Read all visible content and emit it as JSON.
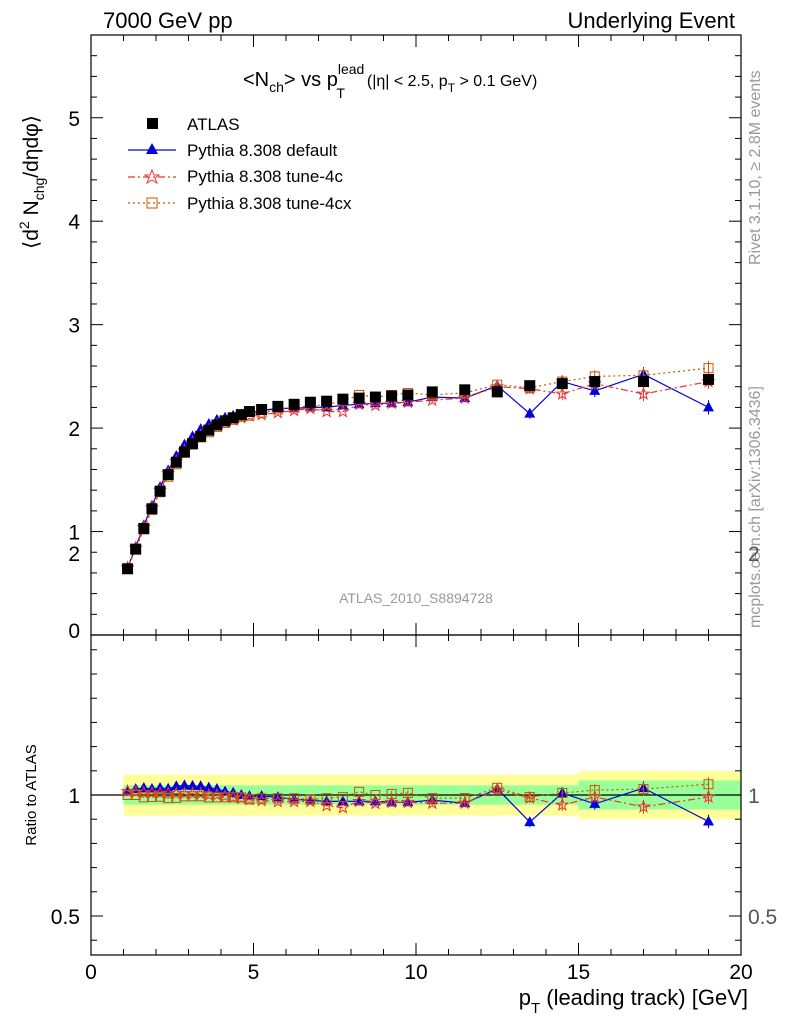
{
  "header": {
    "left": "7000 GeV pp",
    "right": "Underlying Event"
  },
  "side_text": {
    "rivet": "Rivet 3.1.10, ≥ 2.8M events",
    "mcplots": "mcplots.cern.ch [arXiv:1306.3436]"
  },
  "watermark": "ATLAS_2010_S8894728",
  "colors": {
    "atlas": "#000000",
    "default": "#0000dd",
    "tune4c": "#ee3333",
    "tune4cx": "#cc5500",
    "band_inner": "#99ff99",
    "band_outer": "#ffff99"
  },
  "chart_data": [
    {
      "type": "line",
      "title": {
        "prefix": "<N",
        "sub1": "ch",
        "mid": "> vs p",
        "sup": "lead",
        "sub2": "T",
        "rest_a": "(|η| < 2.5, p",
        "rest_sub": "T",
        "rest_b": " > 0.1 GeV)"
      },
      "ylabel": "⟨d² Nₗₕ₉/dηdφ⟩",
      "ylabel_parts": {
        "a": "⟨d",
        "sup": "2",
        "b": " N",
        "sub": "chg",
        "c": "/dηdφ⟩"
      },
      "xlim": [
        0,
        20
      ],
      "ylim": [
        0,
        5.8
      ],
      "yticks": [
        "1",
        "2",
        "3",
        "4",
        "5"
      ],
      "yticks_partial": [
        "0"
      ],
      "grid": false,
      "legend": "top-left",
      "x": [
        1.125,
        1.375,
        1.625,
        1.875,
        2.125,
        2.375,
        2.625,
        2.875,
        3.125,
        3.375,
        3.625,
        3.875,
        4.125,
        4.375,
        4.625,
        4.875,
        5.25,
        5.75,
        6.25,
        6.75,
        7.25,
        7.75,
        8.25,
        8.75,
        9.25,
        9.75,
        10.5,
        11.5,
        12.5,
        13.5,
        14.5,
        15.5,
        17.0,
        19.0
      ],
      "series": [
        {
          "name": "ATLAS",
          "marker": "square",
          "values": [
            0.64,
            0.83,
            1.03,
            1.22,
            1.39,
            1.55,
            1.67,
            1.77,
            1.85,
            1.92,
            1.98,
            2.03,
            2.07,
            2.1,
            2.13,
            2.16,
            2.18,
            2.21,
            2.23,
            2.25,
            2.26,
            2.28,
            2.29,
            2.3,
            2.31,
            2.32,
            2.35,
            2.37,
            2.35,
            2.41,
            2.43,
            2.45,
            2.45,
            2.47
          ]
        },
        {
          "name": "Pythia 8.308 default",
          "marker": "triangle",
          "values": [
            0.65,
            0.85,
            1.06,
            1.25,
            1.43,
            1.59,
            1.73,
            1.84,
            1.92,
            1.99,
            2.04,
            2.08,
            2.1,
            2.12,
            2.13,
            2.15,
            2.17,
            2.19,
            2.19,
            2.2,
            2.2,
            2.22,
            2.23,
            2.24,
            2.24,
            2.25,
            2.3,
            2.29,
            2.41,
            2.14,
            2.45,
            2.36,
            2.52,
            2.2
          ],
          "errors": [
            0.01,
            0.01,
            0.01,
            0.01,
            0.01,
            0.01,
            0.01,
            0.01,
            0.01,
            0.01,
            0.01,
            0.01,
            0.01,
            0.01,
            0.01,
            0.01,
            0.02,
            0.02,
            0.02,
            0.02,
            0.02,
            0.02,
            0.02,
            0.02,
            0.03,
            0.03,
            0.03,
            0.03,
            0.04,
            0.05,
            0.06,
            0.06,
            0.07,
            0.07
          ]
        },
        {
          "name": "Pythia 8.308 tune-4c",
          "marker": "star",
          "values": [
            0.65,
            0.84,
            1.04,
            1.23,
            1.4,
            1.56,
            1.68,
            1.78,
            1.86,
            1.93,
            1.98,
            2.03,
            2.06,
            2.08,
            2.1,
            2.12,
            2.13,
            2.15,
            2.17,
            2.19,
            2.16,
            2.16,
            2.23,
            2.22,
            2.24,
            2.25,
            2.27,
            2.29,
            2.4,
            2.38,
            2.33,
            2.43,
            2.33,
            2.45
          ],
          "errors": [
            0.01,
            0.01,
            0.01,
            0.01,
            0.01,
            0.01,
            0.01,
            0.01,
            0.01,
            0.01,
            0.01,
            0.01,
            0.01,
            0.01,
            0.01,
            0.01,
            0.02,
            0.02,
            0.02,
            0.02,
            0.02,
            0.02,
            0.02,
            0.02,
            0.03,
            0.03,
            0.03,
            0.03,
            0.04,
            0.05,
            0.06,
            0.06,
            0.07,
            0.07
          ]
        },
        {
          "name": "Pythia 8.308 tune-4cx",
          "marker": "open-square",
          "values": [
            0.64,
            0.83,
            1.02,
            1.21,
            1.38,
            1.53,
            1.65,
            1.76,
            1.84,
            1.91,
            1.96,
            2.01,
            2.05,
            2.08,
            2.11,
            2.12,
            2.15,
            2.18,
            2.2,
            2.21,
            2.23,
            2.26,
            2.32,
            2.3,
            2.32,
            2.34,
            2.32,
            2.34,
            2.42,
            2.39,
            2.45,
            2.5,
            2.51,
            2.58
          ],
          "errors": [
            0.01,
            0.01,
            0.01,
            0.01,
            0.01,
            0.01,
            0.01,
            0.01,
            0.01,
            0.01,
            0.01,
            0.01,
            0.01,
            0.01,
            0.01,
            0.01,
            0.02,
            0.02,
            0.02,
            0.02,
            0.02,
            0.02,
            0.02,
            0.02,
            0.03,
            0.03,
            0.03,
            0.03,
            0.04,
            0.05,
            0.06,
            0.06,
            0.07,
            0.07
          ]
        }
      ]
    },
    {
      "type": "line",
      "ylabel": "Ratio to ATLAS",
      "xlabel": {
        "main": "p",
        "sub": "T",
        "rest": " (leading track) [GeV]"
      },
      "xlim": [
        0,
        20
      ],
      "ylim": [
        0.35,
        2.3
      ],
      "xticks": [
        "0",
        "5",
        "10",
        "15",
        "20"
      ],
      "yticks": [
        "0.5",
        "1",
        "2"
      ],
      "grid": false,
      "bands": {
        "inner_halfwidth": 0.04,
        "outer_halfwidth": 0.085,
        "edges_x": [
          1.0,
          15.0,
          20.0
        ],
        "inner_halfwidth_high": 0.06,
        "outer_halfwidth_high": 0.1
      }
    }
  ]
}
